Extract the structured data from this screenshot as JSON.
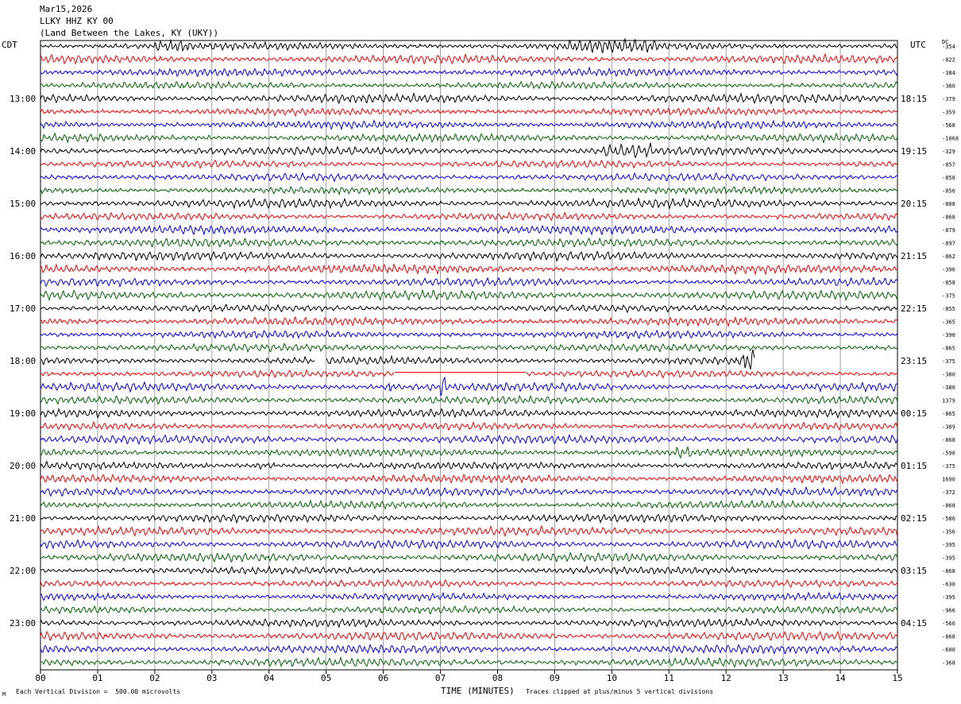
{
  "header": {
    "date": "Mar15,2026",
    "station": "LLKY HHZ KY 00",
    "location": "(Land Between the Lakes, KY (UKY))"
  },
  "left_timezone": "CDT",
  "right_timezone": "UTC",
  "dc_label": "DC",
  "footer": {
    "scale_note": "Each Vertical Division =  500.00 microvolts",
    "axis_title": "TIME (MINUTES)",
    "clip_note": "Traces clipped at plus/minus 5 vertical divisions",
    "corner_mark": "M"
  },
  "colors": {
    "trace_cycle": [
      "#000000",
      "#ff0000",
      "#0000ff",
      "#006400"
    ],
    "grid": "#888888",
    "frame": "#000000"
  },
  "chart_data": {
    "type": "line",
    "title": "",
    "xlabel": "TIME (MINUTES)",
    "ylabel": "",
    "x_ticks": [
      "00",
      "01",
      "02",
      "03",
      "04",
      "05",
      "06",
      "07",
      "08",
      "09",
      "10",
      "11",
      "12",
      "13",
      "14",
      "15"
    ],
    "xlim": [
      0,
      15
    ],
    "left_hour_labels": [
      "13:00",
      "14:00",
      "15:00",
      "16:00",
      "17:00",
      "18:00",
      "19:00",
      "20:00",
      "21:00",
      "22:00",
      "23:00"
    ],
    "right_hour_labels": [
      "18:15",
      "19:15",
      "20:15",
      "21:15",
      "22:15",
      "23:15",
      "00:15",
      "01:15",
      "02:15",
      "03:15",
      "04:15"
    ],
    "trace_count": 48,
    "traces_per_hour": 4,
    "dc_offsets": [
      "-354",
      "-822",
      "-384",
      "-380",
      "-379",
      "-359",
      "-568",
      "-1068",
      "-329",
      "-857",
      "-858",
      "-856",
      "-808",
      "-868",
      "-879",
      "-897",
      "-862",
      "-396",
      "-858",
      "-375",
      "-855",
      "-365",
      "-390",
      "-865",
      "-375",
      "-380",
      "-380",
      "1379",
      "-865",
      "-389",
      "-868",
      "-590",
      "-375",
      "1690",
      "-372",
      "-868",
      "-586",
      "-356",
      "-395",
      "-395",
      "-868",
      "-630",
      "-395",
      "-966",
      "-566",
      "-868",
      "-600",
      "-368"
    ],
    "events": [
      {
        "trace": 0,
        "minute_start": 2.0,
        "minute_end": 2.6,
        "label": "large surface waves"
      },
      {
        "trace": 0,
        "minute_start": 9.2,
        "minute_end": 10.8,
        "label": "surface waves"
      },
      {
        "trace": 8,
        "minute_start": 9.8,
        "minute_end": 10.7,
        "label": "burst"
      },
      {
        "trace": 24,
        "minute_start": 12.3,
        "minute_end": 12.5,
        "label": "spike"
      },
      {
        "trace": 26,
        "minute_start": 6.1,
        "minute_end": 6.2,
        "label": "spike"
      },
      {
        "trace": 26,
        "minute_start": 7.0,
        "minute_end": 7.1,
        "label": "spike"
      },
      {
        "trace": 31,
        "minute_start": 11.1,
        "minute_end": 11.4,
        "label": "burst"
      },
      {
        "trace": 32,
        "minute_start": 3.7,
        "minute_end": 4.1,
        "label": "burst"
      }
    ],
    "gaps": [
      {
        "trace": 24,
        "minute_start": 4.8,
        "minute_end": 5.0
      },
      {
        "trace": 24,
        "minute_start": 12.5,
        "minute_end": 15.0
      },
      {
        "trace": 25,
        "minute_start": 6.2,
        "minute_end": 8.5
      }
    ],
    "grid": true,
    "legend": "none"
  }
}
